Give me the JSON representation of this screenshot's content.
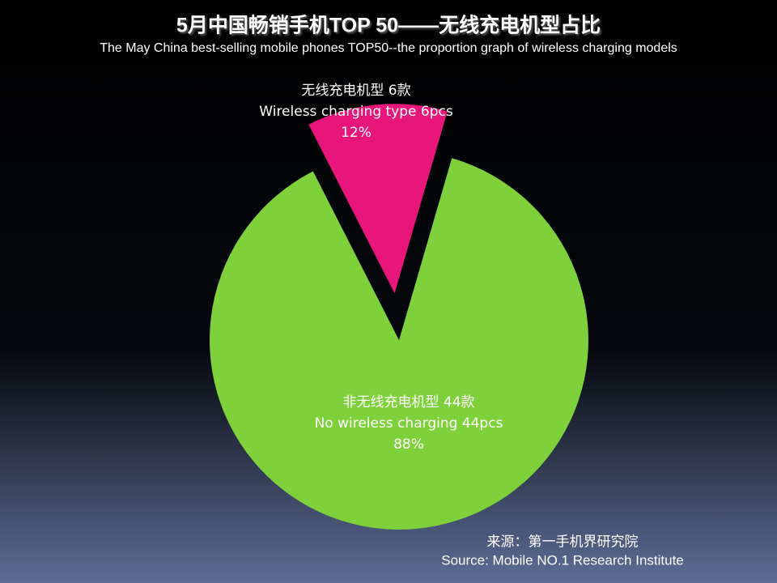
{
  "chart_data": {
    "type": "pie",
    "title": "5月中国畅销手机TOP 50——无线充电机型占比",
    "subtitle": "The May China best-selling mobile phones TOP50--the proportion graph of wireless charging models",
    "categories": [
      "无线充电机型 6款",
      "非无线充电机型 44款"
    ],
    "categories_en": [
      "Wireless charging type 6pcs",
      "No wireless charging 44pcs"
    ],
    "values": [
      12,
      88
    ],
    "value_labels": [
      "12%",
      "88%"
    ],
    "colors": [
      "#e8157a",
      "#7fd13b"
    ],
    "exploded_index": 0,
    "source": "来源：第一手机界研究院",
    "source_en": "Source: Mobile NO.1 Research Institute"
  }
}
